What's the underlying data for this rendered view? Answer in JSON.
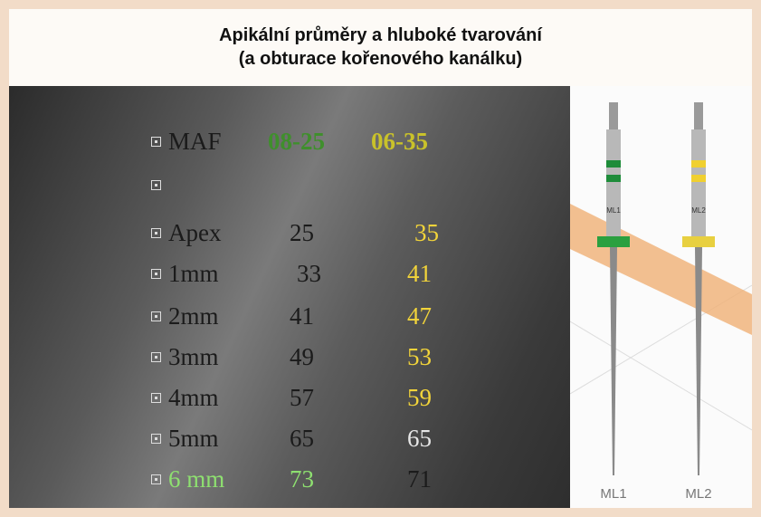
{
  "header": {
    "title_line1": "Apikální průměry a hluboké tvarování",
    "title_line2": "(a obturace kořenového kanálku)"
  },
  "table": {
    "rows": [
      [
        "MAF",
        "08-25",
        "06-35"
      ],
      [
        "Apex",
        "25",
        "35"
      ],
      [
        "1mm",
        "33",
        "41"
      ],
      [
        "2mm",
        "41",
        "47"
      ],
      [
        "3mm",
        "49",
        "53"
      ],
      [
        "4mm",
        "57",
        "59"
      ],
      [
        "5mm",
        "65",
        "65"
      ],
      [
        "6 mm",
        "73",
        "71"
      ]
    ]
  },
  "image": {
    "labels": [
      "ML1",
      "ML2"
    ]
  }
}
